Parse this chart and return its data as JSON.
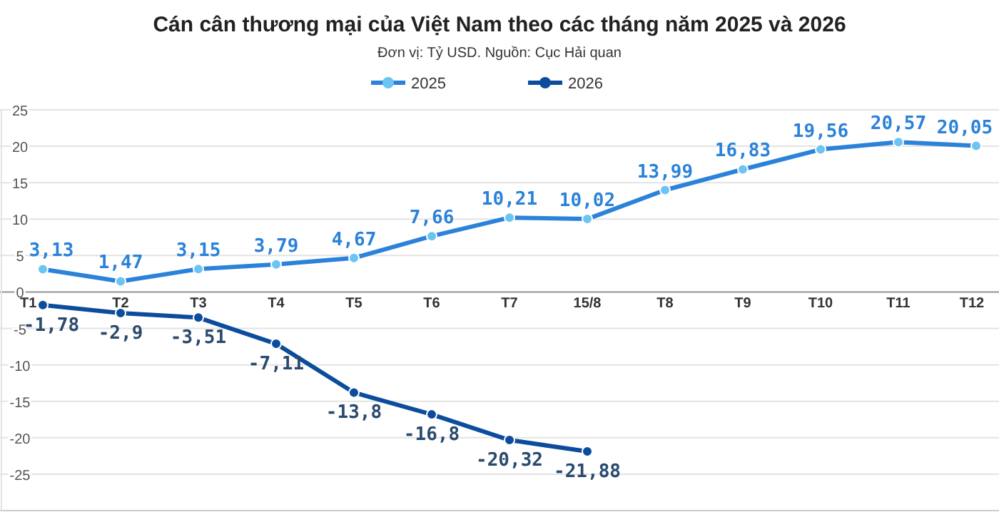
{
  "chart_data": {
    "type": "line",
    "title": "Cán cân thương mại của Việt Nam theo các tháng năm 2025 và 2026",
    "subtitle": "Đơn vị: Tỷ USD. Nguồn: Cục Hải quan",
    "categories": [
      "T1",
      "T2",
      "T3",
      "T4",
      "T5",
      "T6",
      "T7",
      "15/8",
      "T8",
      "T9",
      "T10",
      "T11",
      "T12"
    ],
    "series": [
      {
        "name": "2025",
        "color": "#2b82d9",
        "values": [
          3.13,
          1.47,
          3.15,
          3.79,
          4.67,
          7.66,
          10.21,
          10.02,
          13.99,
          16.83,
          19.56,
          20.57,
          20.05
        ],
        "value_labels": [
          "3,13",
          "1,47",
          "3,15",
          "3,79",
          "4,67",
          "7,66",
          "10,21",
          "10,02",
          "13,99",
          "16,83",
          "19,56",
          "20,57",
          "20,05"
        ]
      },
      {
        "name": "2026",
        "color": "#0b4d9c",
        "values": [
          -1.78,
          -2.9,
          -3.51,
          -7.11,
          -13.8,
          -16.8,
          -20.32,
          -21.88,
          null,
          null,
          null,
          null,
          null
        ],
        "value_labels": [
          "-1,78",
          "-2,9",
          "-3,51",
          "-7,11",
          "-13,8",
          "-16,8",
          "-20,32",
          "-21,88",
          null,
          null,
          null,
          null,
          null
        ]
      }
    ],
    "ylim": [
      -30,
      25
    ],
    "yticks": [
      -25,
      -20,
      -15,
      -10,
      -5,
      0,
      5,
      10,
      15,
      20,
      25
    ],
    "grid": "y",
    "legend": "top",
    "marker": "circle",
    "line_style": "solid"
  }
}
